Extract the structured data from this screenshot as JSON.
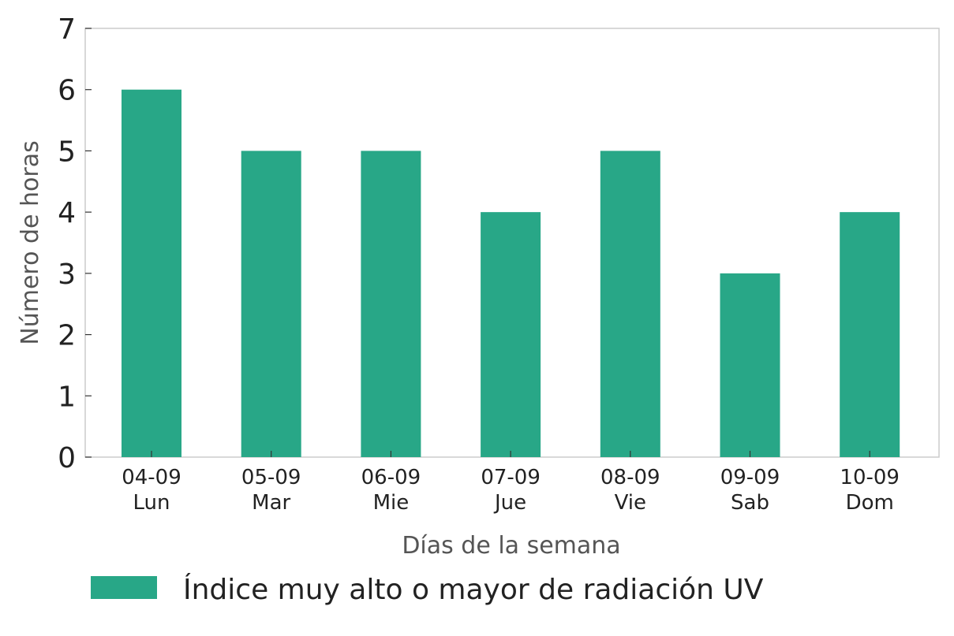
{
  "chart_data": {
    "type": "bar",
    "categories": [
      [
        "04-09",
        "Lun"
      ],
      [
        "05-09",
        "Mar"
      ],
      [
        "06-09",
        "Mie"
      ],
      [
        "07-09",
        "Jue"
      ],
      [
        "08-09",
        "Vie"
      ],
      [
        "09-09",
        "Sab"
      ],
      [
        "10-09",
        "Dom"
      ]
    ],
    "series": [
      {
        "name": "Índice muy alto o mayor de radiación UV",
        "values": [
          6,
          5,
          5,
          4,
          5,
          3,
          4
        ],
        "color": "#28a787"
      }
    ],
    "xlabel": "Días de la semana",
    "ylabel": "Número de horas",
    "ylim": [
      0,
      7
    ],
    "yticks": [
      "0",
      "1",
      "2",
      "3",
      "4",
      "5",
      "6",
      "7"
    ],
    "grid": false,
    "legend_position": "bottom-left"
  }
}
